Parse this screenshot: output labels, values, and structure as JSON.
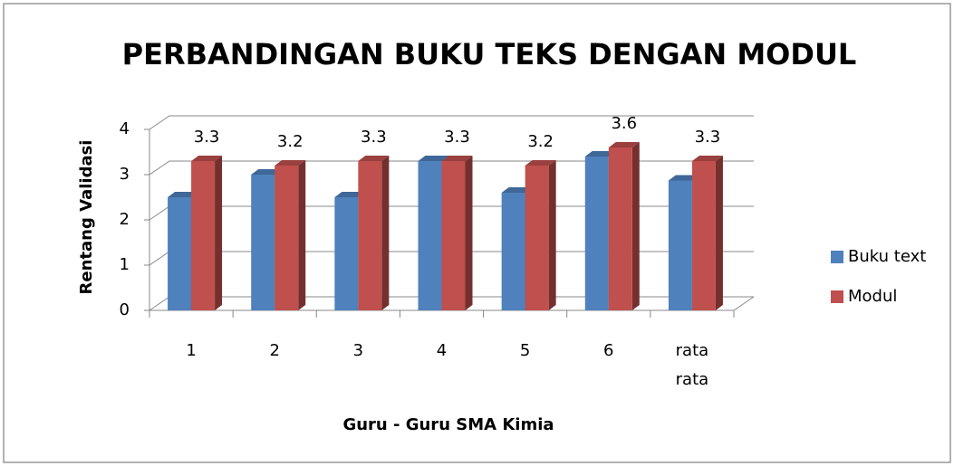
{
  "chart_data": {
    "type": "bar3d",
    "title": "PERBANDINGAN BUKU TEKS DENGAN MODUL",
    "ylabel": "Rentang Validasi",
    "xlabel": "Guru - Guru SMA Kimia",
    "categories": [
      "1",
      "2",
      "3",
      "4",
      "5",
      "6",
      "rata rata"
    ],
    "series": [
      {
        "name": "Buku text",
        "color": "#4f81bd",
        "values": [
          2.5,
          3.0,
          2.5,
          3.3,
          2.6,
          3.4,
          2.87
        ]
      },
      {
        "name": "Modul",
        "color": "#c0504d",
        "values": [
          3.3,
          3.2,
          3.3,
          3.3,
          3.2,
          3.6,
          3.3
        ],
        "labels": true
      }
    ],
    "ylim": [
      0,
      4
    ],
    "yticks": [
      0,
      1,
      2,
      3,
      4
    ],
    "grid": true,
    "legend": "right"
  }
}
